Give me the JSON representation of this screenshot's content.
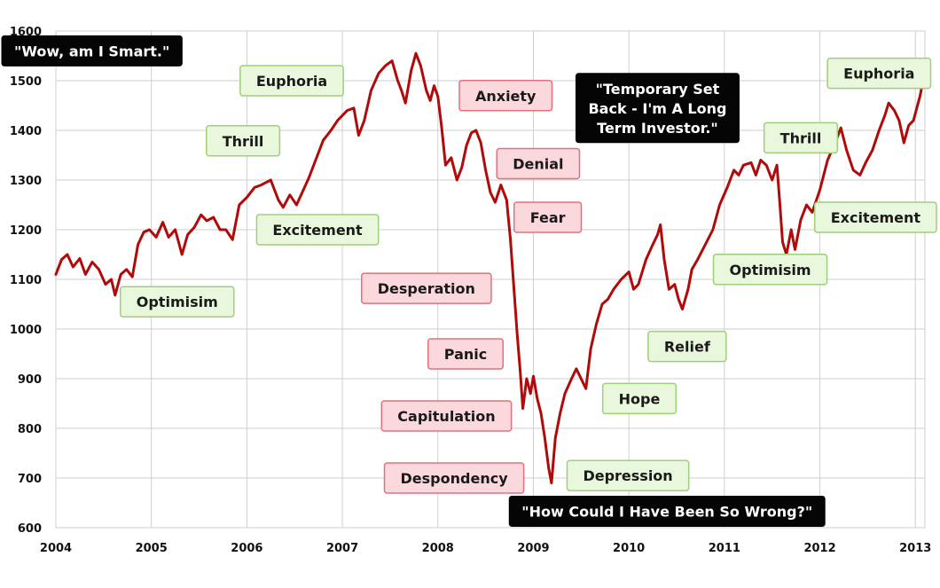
{
  "colors": {
    "line": "#b00a0a",
    "grid": "#cfcfcf",
    "green_fill": "#e9f7dc",
    "green_border": "#9fcf7a",
    "red_fill": "#fbd8dc",
    "red_border": "#e3707c",
    "black_fill": "#050505"
  },
  "chart_data": {
    "type": "line",
    "title": "",
    "xlabel": "",
    "ylabel": "",
    "xlim": [
      2004,
      2013.1
    ],
    "ylim": [
      600,
      1600
    ],
    "grid": true,
    "x_ticks": [
      "2004",
      "2005",
      "2006",
      "2007",
      "2008",
      "2009",
      "2010",
      "2011",
      "2012",
      "2013"
    ],
    "y_ticks": [
      "600",
      "700",
      "800",
      "900",
      "1000",
      "1100",
      "1200",
      "1300",
      "1400",
      "1500",
      "1600"
    ],
    "series": [
      {
        "name": "",
        "points": [
          [
            2004.0,
            1110
          ],
          [
            2004.06,
            1140
          ],
          [
            2004.12,
            1150
          ],
          [
            2004.18,
            1125
          ],
          [
            2004.25,
            1142
          ],
          [
            2004.31,
            1110
          ],
          [
            2004.38,
            1135
          ],
          [
            2004.45,
            1120
          ],
          [
            2004.52,
            1090
          ],
          [
            2004.58,
            1100
          ],
          [
            2004.62,
            1068
          ],
          [
            2004.68,
            1110
          ],
          [
            2004.74,
            1120
          ],
          [
            2004.8,
            1105
          ],
          [
            2004.86,
            1170
          ],
          [
            2004.92,
            1195
          ],
          [
            2004.98,
            1200
          ],
          [
            2005.05,
            1185
          ],
          [
            2005.12,
            1215
          ],
          [
            2005.18,
            1185
          ],
          [
            2005.25,
            1200
          ],
          [
            2005.32,
            1150
          ],
          [
            2005.38,
            1190
          ],
          [
            2005.45,
            1205
          ],
          [
            2005.52,
            1230
          ],
          [
            2005.58,
            1218
          ],
          [
            2005.65,
            1225
          ],
          [
            2005.72,
            1200
          ],
          [
            2005.78,
            1200
          ],
          [
            2005.85,
            1180
          ],
          [
            2005.92,
            1250
          ],
          [
            2006.0,
            1265
          ],
          [
            2006.08,
            1285
          ],
          [
            2006.15,
            1290
          ],
          [
            2006.25,
            1300
          ],
          [
            2006.33,
            1260
          ],
          [
            2006.38,
            1245
          ],
          [
            2006.45,
            1270
          ],
          [
            2006.52,
            1250
          ],
          [
            2006.58,
            1275
          ],
          [
            2006.65,
            1305
          ],
          [
            2006.72,
            1340
          ],
          [
            2006.8,
            1380
          ],
          [
            2006.88,
            1400
          ],
          [
            2006.95,
            1420
          ],
          [
            2007.05,
            1440
          ],
          [
            2007.12,
            1445
          ],
          [
            2007.17,
            1390
          ],
          [
            2007.23,
            1420
          ],
          [
            2007.3,
            1480
          ],
          [
            2007.38,
            1515
          ],
          [
            2007.45,
            1530
          ],
          [
            2007.52,
            1540
          ],
          [
            2007.58,
            1500
          ],
          [
            2007.62,
            1480
          ],
          [
            2007.66,
            1455
          ],
          [
            2007.72,
            1520
          ],
          [
            2007.77,
            1555
          ],
          [
            2007.82,
            1530
          ],
          [
            2007.88,
            1480
          ],
          [
            2007.92,
            1460
          ],
          [
            2007.96,
            1490
          ],
          [
            2008.0,
            1468
          ],
          [
            2008.04,
            1405
          ],
          [
            2008.08,
            1330
          ],
          [
            2008.14,
            1345
          ],
          [
            2008.2,
            1300
          ],
          [
            2008.25,
            1325
          ],
          [
            2008.3,
            1370
          ],
          [
            2008.35,
            1395
          ],
          [
            2008.4,
            1400
          ],
          [
            2008.45,
            1375
          ],
          [
            2008.5,
            1320
          ],
          [
            2008.55,
            1275
          ],
          [
            2008.6,
            1255
          ],
          [
            2008.66,
            1290
          ],
          [
            2008.72,
            1260
          ],
          [
            2008.76,
            1180
          ],
          [
            2008.79,
            1100
          ],
          [
            2008.83,
            990
          ],
          [
            2008.86,
            920
          ],
          [
            2008.89,
            840
          ],
          [
            2008.93,
            900
          ],
          [
            2008.97,
            870
          ],
          [
            2009.0,
            905
          ],
          [
            2009.04,
            860
          ],
          [
            2009.08,
            830
          ],
          [
            2009.12,
            780
          ],
          [
            2009.16,
            720
          ],
          [
            2009.19,
            690
          ],
          [
            2009.23,
            780
          ],
          [
            2009.28,
            830
          ],
          [
            2009.33,
            870
          ],
          [
            2009.4,
            900
          ],
          [
            2009.45,
            920
          ],
          [
            2009.5,
            900
          ],
          [
            2009.55,
            880
          ],
          [
            2009.6,
            960
          ],
          [
            2009.66,
            1010
          ],
          [
            2009.72,
            1050
          ],
          [
            2009.78,
            1060
          ],
          [
            2009.84,
            1080
          ],
          [
            2009.92,
            1100
          ],
          [
            2010.0,
            1115
          ],
          [
            2010.05,
            1080
          ],
          [
            2010.1,
            1090
          ],
          [
            2010.18,
            1140
          ],
          [
            2010.25,
            1170
          ],
          [
            2010.3,
            1190
          ],
          [
            2010.33,
            1210
          ],
          [
            2010.37,
            1140
          ],
          [
            2010.42,
            1080
          ],
          [
            2010.48,
            1090
          ],
          [
            2010.52,
            1060
          ],
          [
            2010.56,
            1040
          ],
          [
            2010.62,
            1080
          ],
          [
            2010.66,
            1120
          ],
          [
            2010.72,
            1140
          ],
          [
            2010.8,
            1170
          ],
          [
            2010.88,
            1200
          ],
          [
            2010.95,
            1250
          ],
          [
            2011.03,
            1285
          ],
          [
            2011.1,
            1320
          ],
          [
            2011.15,
            1310
          ],
          [
            2011.2,
            1330
          ],
          [
            2011.28,
            1335
          ],
          [
            2011.33,
            1310
          ],
          [
            2011.38,
            1340
          ],
          [
            2011.44,
            1330
          ],
          [
            2011.5,
            1300
          ],
          [
            2011.55,
            1330
          ],
          [
            2011.58,
            1255
          ],
          [
            2011.61,
            1175
          ],
          [
            2011.65,
            1150
          ],
          [
            2011.7,
            1200
          ],
          [
            2011.74,
            1160
          ],
          [
            2011.8,
            1220
          ],
          [
            2011.86,
            1250
          ],
          [
            2011.92,
            1235
          ],
          [
            2012.0,
            1280
          ],
          [
            2012.08,
            1340
          ],
          [
            2012.16,
            1375
          ],
          [
            2012.22,
            1405
          ],
          [
            2012.28,
            1360
          ],
          [
            2012.35,
            1320
          ],
          [
            2012.42,
            1310
          ],
          [
            2012.48,
            1335
          ],
          [
            2012.55,
            1360
          ],
          [
            2012.62,
            1400
          ],
          [
            2012.68,
            1430
          ],
          [
            2012.72,
            1455
          ],
          [
            2012.78,
            1440
          ],
          [
            2012.83,
            1420
          ],
          [
            2012.88,
            1375
          ],
          [
            2012.93,
            1410
          ],
          [
            2012.98,
            1420
          ],
          [
            2013.05,
            1470
          ],
          [
            2013.09,
            1510
          ]
        ]
      }
    ],
    "annotations": [
      {
        "text": "\"Wow, am I Smart.\"",
        "style": "black",
        "x": 2004.36,
        "y": 1560
      },
      {
        "text": "Euphoria",
        "style": "green",
        "x": 2006.47,
        "y": 1500
      },
      {
        "text": "Thrill",
        "style": "green",
        "x": 2005.96,
        "y": 1379
      },
      {
        "text": "Excitement",
        "style": "green",
        "x": 2006.74,
        "y": 1200
      },
      {
        "text": "Optimisim",
        "style": "green",
        "x": 2005.27,
        "y": 1055
      },
      {
        "text": "Anxiety",
        "style": "red",
        "x": 2008.71,
        "y": 1470
      },
      {
        "text": "Denial",
        "style": "red",
        "x": 2009.05,
        "y": 1333
      },
      {
        "text": "Fear",
        "style": "red",
        "x": 2009.15,
        "y": 1225
      },
      {
        "text": "Desperation",
        "style": "red",
        "x": 2007.88,
        "y": 1082
      },
      {
        "text": "Panic",
        "style": "red",
        "x": 2008.29,
        "y": 950
      },
      {
        "text": "Capitulation",
        "style": "red",
        "x": 2008.09,
        "y": 825
      },
      {
        "text": "Despondency",
        "style": "red",
        "x": 2008.17,
        "y": 700
      },
      {
        "text": "Depression",
        "style": "green",
        "x": 2009.99,
        "y": 705
      },
      {
        "text": "Hope",
        "style": "green",
        "x": 2010.11,
        "y": 860
      },
      {
        "text": "Relief",
        "style": "green",
        "x": 2010.61,
        "y": 965
      },
      {
        "text": "Optimisim",
        "style": "green",
        "x": 2011.48,
        "y": 1120
      },
      {
        "text": "Thrill",
        "style": "green",
        "x": 2011.8,
        "y": 1385
      },
      {
        "text": "Excitement",
        "style": "green",
        "x": 2012.62,
        "y": 1225
      },
      {
        "text": "Euphoria",
        "style": "green",
        "x": 2012.62,
        "y": 1515
      },
      {
        "text": "\"How Could I Have Been So Wrong?\"",
        "style": "black",
        "x": 2010.4,
        "y": 633
      },
      {
        "text": [
          "\"Temporary Set",
          "Back - I'm A Long",
          "Term Investor.\""
        ],
        "style": "black",
        "x": 2010.3,
        "y": 1445
      }
    ]
  }
}
